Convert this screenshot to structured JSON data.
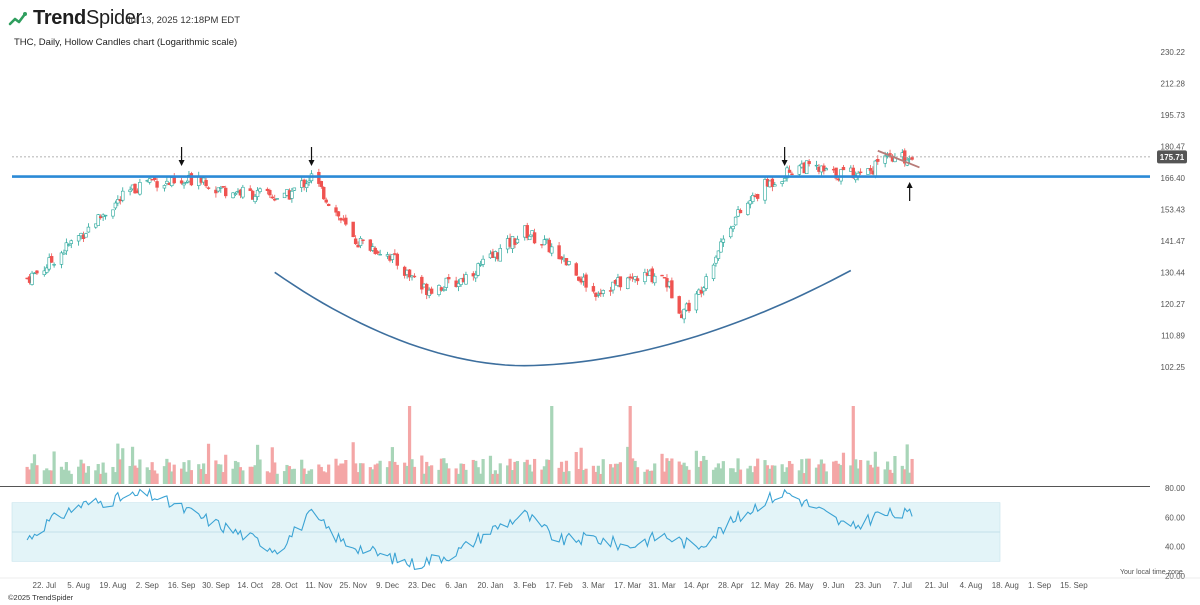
{
  "header": {
    "brand_prefix": "Trend",
    "brand_suffix": "Spider",
    "timestamp": "Jul 13, 2025 12:18PM EDT",
    "subtitle": "THC, Daily, Hollow Candles chart (Logarithmic scale)"
  },
  "footer": {
    "copyright": "©2025 TrendSpider",
    "timezone_note": "Your local time zone"
  },
  "colors": {
    "bull": "#26a69a",
    "bear": "#ef5350",
    "bull_volume": "#a8d5b8",
    "bear_volume": "#f4a6a6",
    "support_line": "#2b8ad6",
    "trendline": "#b87b78",
    "cup_curve": "#3d6f9e",
    "rsi_line": "#3ba3d4",
    "rsi_band": "#e3f4f8",
    "price_badge": "#555555"
  },
  "chart_data": [
    {
      "type": "candlestick",
      "ticker": "THC",
      "interval": "Daily",
      "style": "Hollow Candles",
      "scale": "log",
      "ylim": [
        102.25,
        230.22
      ],
      "y_tick_labels": [
        "230.22",
        "212.28",
        "195.73",
        "180.47",
        "166.40",
        "153.43",
        "141.47",
        "130.44",
        "120.27",
        "110.89",
        "102.25"
      ],
      "x_tick_labels": [
        "22. Jul",
        "5. Aug",
        "19. Aug",
        "2. Sep",
        "16. Sep",
        "30. Sep",
        "14. Oct",
        "28. Oct",
        "11. Nov",
        "25. Nov",
        "9. Dec",
        "23. Dec",
        "6. Jan",
        "20. Jan",
        "3. Feb",
        "17. Feb",
        "3. Mar",
        "17. Mar",
        "31. Mar",
        "14. Apr",
        "28. Apr",
        "12. May",
        "26. May",
        "9. Jun",
        "23. Jun",
        "7. Jul",
        "21. Jul",
        "4. Aug",
        "18. Aug",
        "1. Sep",
        "15. Sep"
      ],
      "last_price": "175.71",
      "close_series": {
        "dates": [
          "2024-07-15",
          "2024-07-22",
          "2024-08-05",
          "2024-08-19",
          "2024-09-02",
          "2024-09-16",
          "2024-09-23",
          "2024-09-30",
          "2024-10-14",
          "2024-10-28",
          "2024-11-08",
          "2024-11-25",
          "2024-12-09",
          "2024-12-23",
          "2025-01-06",
          "2025-01-20",
          "2025-02-03",
          "2025-02-17",
          "2025-03-03",
          "2025-03-17",
          "2025-03-31",
          "2025-04-08",
          "2025-04-14",
          "2025-04-28",
          "2025-05-12",
          "2025-05-26",
          "2025-06-09",
          "2025-06-23",
          "2025-07-01",
          "2025-07-11"
        ],
        "values": [
          128.5,
          132,
          143,
          155,
          166,
          163,
          168,
          162,
          160,
          158,
          167,
          142,
          137,
          125,
          127,
          135,
          145,
          137,
          124,
          128,
          130,
          118,
          122,
          148,
          163,
          172,
          168,
          170,
          174,
          175.7
        ]
      },
      "annotations": [
        {
          "kind": "horizontal_support",
          "price": 167
        },
        {
          "kind": "dotted_price_line",
          "price": 175.71
        },
        {
          "kind": "descending_trendline",
          "from": {
            "date": "2025-06-27",
            "price": 178.5
          },
          "to": {
            "date": "2025-07-14",
            "price": 171
          }
        },
        {
          "kind": "cup_base_curve",
          "from": "2024-10-24",
          "to": "2025-06-16"
        },
        {
          "kind": "down_arrow",
          "date": "2024-09-16"
        },
        {
          "kind": "down_arrow",
          "date": "2024-11-08"
        },
        {
          "kind": "down_arrow",
          "date": "2025-05-20"
        },
        {
          "kind": "up_arrow",
          "date": "2025-07-10"
        }
      ]
    },
    {
      "type": "bar",
      "title": "Volume",
      "peak_dates": [
        "2024-12-18",
        "2025-02-14",
        "2025-03-18",
        "2025-06-17"
      ]
    },
    {
      "type": "line",
      "title": "RSI",
      "ylim": [
        20,
        80
      ],
      "y_tick_labels": [
        "80.00",
        "60.00",
        "40.00",
        "20.00"
      ],
      "band": [
        30,
        70
      ],
      "midline": 50,
      "dates": [
        "2024-07-15",
        "2024-07-22",
        "2024-08-05",
        "2024-08-19",
        "2024-09-02",
        "2024-09-16",
        "2024-10-01",
        "2024-10-14",
        "2024-10-25",
        "2024-11-08",
        "2024-11-20",
        "2024-12-05",
        "2024-12-20",
        "2025-01-06",
        "2025-01-21",
        "2025-02-03",
        "2025-02-17",
        "2025-03-03",
        "2025-03-17",
        "2025-03-31",
        "2025-04-14",
        "2025-04-28",
        "2025-05-12",
        "2025-05-21",
        "2025-06-02",
        "2025-06-16",
        "2025-06-27",
        "2025-07-11"
      ],
      "values": [
        45,
        55,
        68,
        72,
        76,
        66,
        55,
        46,
        38,
        62,
        44,
        35,
        28,
        36,
        52,
        62,
        44,
        46,
        40,
        48,
        40,
        56,
        72,
        77,
        66,
        52,
        62,
        62
      ]
    }
  ]
}
